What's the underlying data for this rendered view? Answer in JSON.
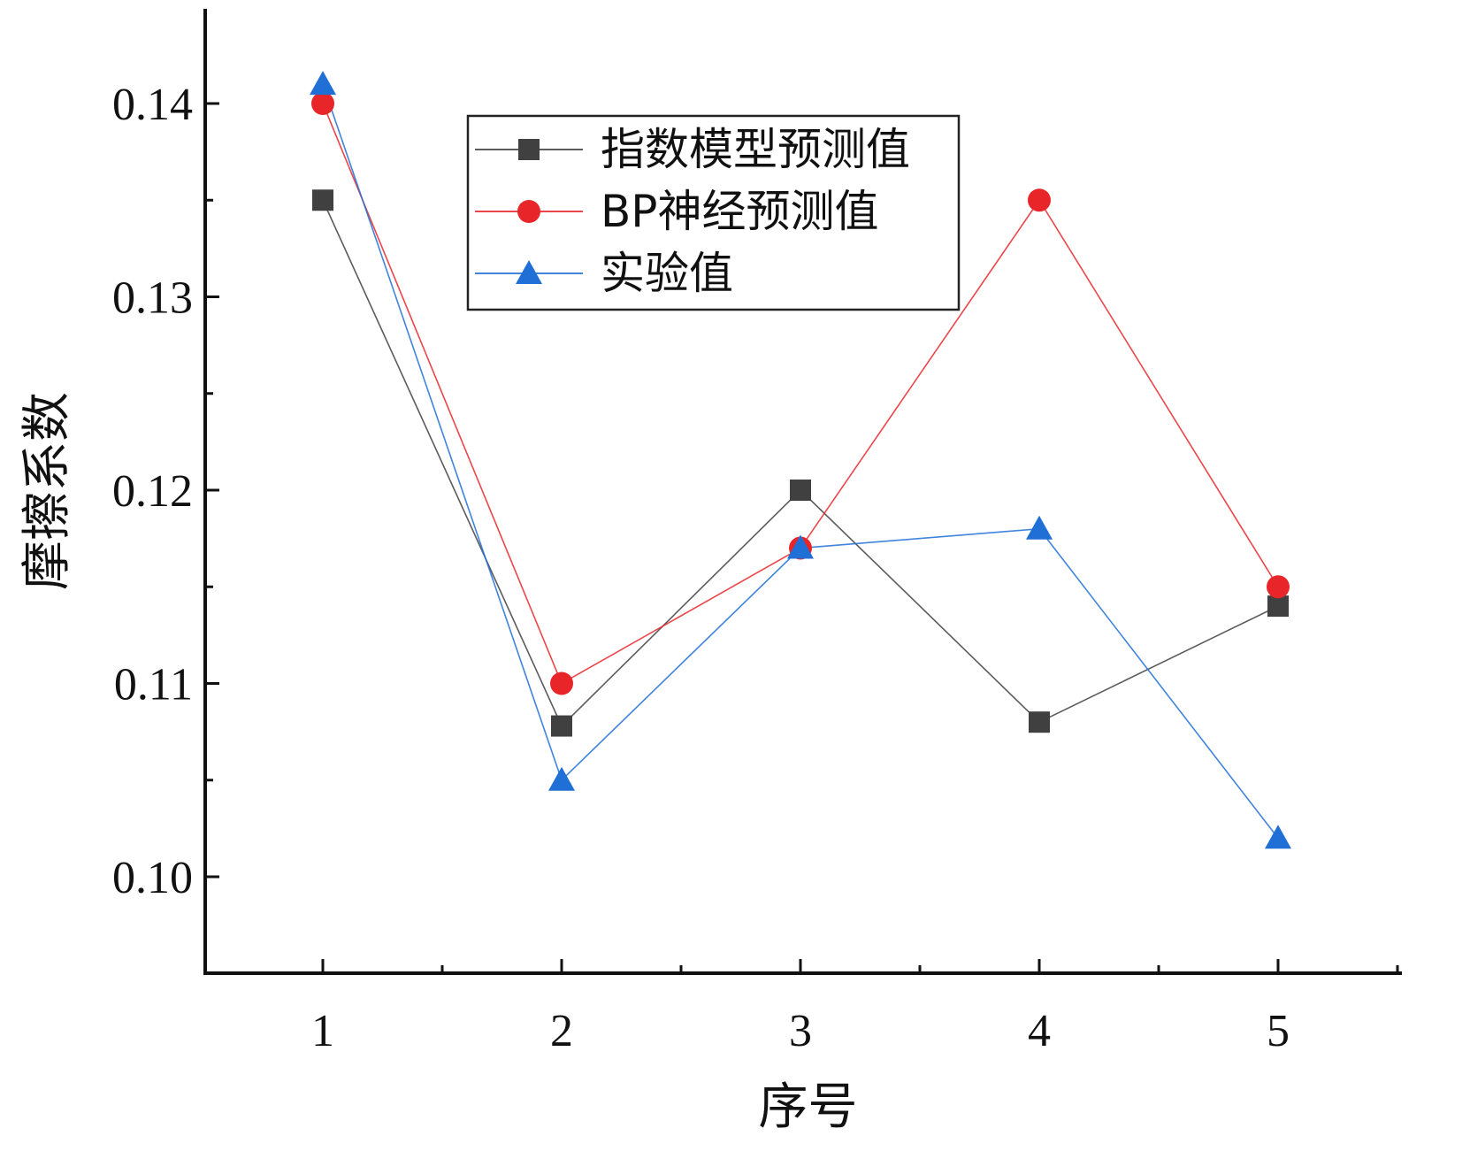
{
  "chart_data": {
    "type": "line",
    "title": "",
    "xlabel": "序号",
    "ylabel": "摩擦系数",
    "categories": [
      "1",
      "2",
      "3",
      "4",
      "5"
    ],
    "x": [
      1,
      2,
      3,
      4,
      5
    ],
    "xlim": [
      0.5,
      5.5
    ],
    "ylim": [
      0.095,
      0.145
    ],
    "yticks": [
      "0.10",
      "0.11",
      "0.12",
      "0.13",
      "0.14"
    ],
    "grid": false,
    "legend_position": "top-center",
    "series": [
      {
        "name": "指数模型预测值",
        "marker": "square",
        "color": "#404040",
        "values": [
          0.135,
          0.1078,
          0.12,
          0.108,
          0.114
        ]
      },
      {
        "name": "BP神经预测值",
        "marker": "circle",
        "color": "#e8262a",
        "values": [
          0.14,
          0.11,
          0.117,
          0.135,
          0.115
        ]
      },
      {
        "name": "实验值",
        "marker": "triangle",
        "color": "#1f6fd6",
        "values": [
          0.141,
          0.105,
          0.117,
          0.118,
          0.102
        ]
      }
    ]
  }
}
